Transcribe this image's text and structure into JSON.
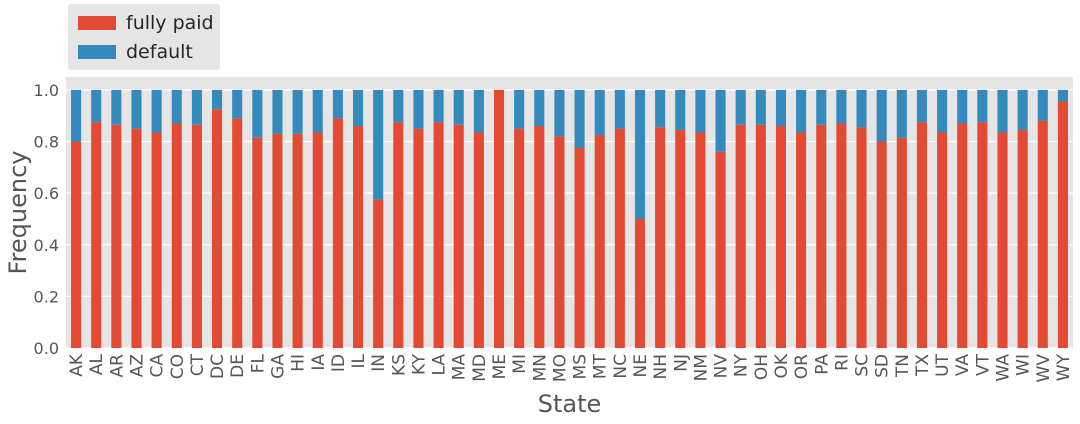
{
  "chart_data": {
    "type": "bar",
    "stacked": true,
    "xlabel": "State",
    "ylabel": "Frequency",
    "ylim": [
      0,
      1.05
    ],
    "yticks": [
      "0.0",
      "0.2",
      "0.4",
      "0.6",
      "0.8",
      "1.0"
    ],
    "grid": true,
    "legend_position": "top-left",
    "categories": [
      "AK",
      "AL",
      "AR",
      "AZ",
      "CA",
      "CO",
      "CT",
      "DC",
      "DE",
      "FL",
      "GA",
      "HI",
      "IA",
      "ID",
      "IL",
      "IN",
      "KS",
      "KY",
      "LA",
      "MA",
      "MD",
      "ME",
      "MI",
      "MN",
      "MO",
      "MS",
      "MT",
      "NC",
      "NE",
      "NH",
      "NJ",
      "NM",
      "NV",
      "NY",
      "OH",
      "OK",
      "OR",
      "PA",
      "RI",
      "SC",
      "SD",
      "TN",
      "TX",
      "UT",
      "VA",
      "VT",
      "WA",
      "WI",
      "WV",
      "WY"
    ],
    "series": [
      {
        "name": "fully paid",
        "color": "#e24a33",
        "values": [
          0.8,
          0.875,
          0.865,
          0.85,
          0.835,
          0.87,
          0.865,
          0.925,
          0.89,
          0.815,
          0.83,
          0.83,
          0.835,
          0.89,
          0.86,
          0.575,
          0.875,
          0.85,
          0.875,
          0.865,
          0.835,
          1.0,
          0.85,
          0.86,
          0.82,
          0.775,
          0.825,
          0.85,
          0.5,
          0.855,
          0.845,
          0.835,
          0.76,
          0.865,
          0.865,
          0.86,
          0.835,
          0.865,
          0.87,
          0.855,
          0.8,
          0.815,
          0.875,
          0.835,
          0.87,
          0.875,
          0.835,
          0.845,
          0.88,
          0.955
        ]
      },
      {
        "name": "default",
        "color": "#348abd",
        "values": [
          0.2,
          0.125,
          0.135,
          0.15,
          0.165,
          0.13,
          0.135,
          0.075,
          0.11,
          0.185,
          0.17,
          0.17,
          0.165,
          0.11,
          0.14,
          0.425,
          0.125,
          0.15,
          0.125,
          0.135,
          0.165,
          0.0,
          0.15,
          0.14,
          0.18,
          0.225,
          0.175,
          0.15,
          0.5,
          0.145,
          0.155,
          0.165,
          0.24,
          0.135,
          0.135,
          0.14,
          0.165,
          0.135,
          0.13,
          0.145,
          0.2,
          0.185,
          0.125,
          0.165,
          0.13,
          0.125,
          0.165,
          0.155,
          0.12,
          0.045
        ]
      }
    ]
  }
}
